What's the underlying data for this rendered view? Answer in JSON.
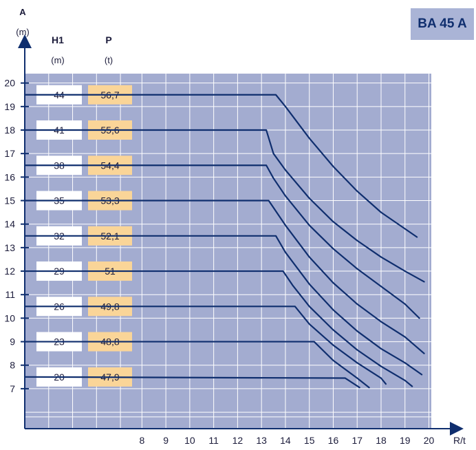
{
  "badge": "BA 45 A",
  "chart_data": {
    "type": "line",
    "ylabel": "A",
    "ylabel_unit": "(m)",
    "xlabel": "R/t",
    "col_h": "H1",
    "col_h_unit": "(m)",
    "col_p": "P",
    "col_p_unit": "(t)",
    "xlim": [
      3.1,
      20.1
    ],
    "ylim": [
      5.3,
      20.4
    ],
    "x_ticks": [
      8,
      9,
      10,
      11,
      12,
      13,
      14,
      15,
      16,
      17,
      18,
      19,
      20
    ],
    "y_ticks": [
      7,
      8,
      9,
      10,
      11,
      12,
      13,
      14,
      15,
      16,
      17,
      18,
      19,
      20
    ],
    "grid": true,
    "colors": {
      "plot_bg": "#a3acd0",
      "grid": "#ffffff",
      "line": "#0f2e6e",
      "h_box": "#ffffff",
      "p_box": "#fad598"
    },
    "series": [
      {
        "h": "44",
        "p": "56,7",
        "points": [
          [
            3.1,
            19.5
          ],
          [
            13.6,
            19.5
          ],
          [
            14.0,
            19.0
          ],
          [
            15.0,
            17.65
          ],
          [
            16.0,
            16.45
          ],
          [
            17.0,
            15.4
          ],
          [
            18.0,
            14.5
          ],
          [
            19.5,
            13.45
          ]
        ]
      },
      {
        "h": "41",
        "p": "55,6",
        "points": [
          [
            3.1,
            18.0
          ],
          [
            13.2,
            18.0
          ],
          [
            13.5,
            17.0
          ],
          [
            14.0,
            16.3
          ],
          [
            15.0,
            15.1
          ],
          [
            16.0,
            14.1
          ],
          [
            17.0,
            13.3
          ],
          [
            18.0,
            12.6
          ],
          [
            19.0,
            12.0
          ],
          [
            19.8,
            11.55
          ]
        ]
      },
      {
        "h": "38",
        "p": "54,4",
        "points": [
          [
            3.1,
            16.5
          ],
          [
            13.2,
            16.5
          ],
          [
            13.5,
            15.95
          ],
          [
            14.0,
            15.2
          ],
          [
            15.0,
            13.95
          ],
          [
            16.0,
            12.95
          ],
          [
            17.0,
            12.1
          ],
          [
            18.0,
            11.35
          ],
          [
            19.0,
            10.6
          ],
          [
            19.6,
            10.0
          ]
        ]
      },
      {
        "h": "35",
        "p": "53,3",
        "points": [
          [
            3.1,
            15.0
          ],
          [
            13.3,
            15.0
          ],
          [
            13.6,
            14.55
          ],
          [
            14.0,
            13.95
          ],
          [
            15.0,
            12.6
          ],
          [
            16.0,
            11.5
          ],
          [
            17.0,
            10.6
          ],
          [
            18.0,
            9.85
          ],
          [
            19.0,
            9.2
          ],
          [
            19.8,
            8.5
          ]
        ]
      },
      {
        "h": "32",
        "p": "52,1",
        "points": [
          [
            3.1,
            13.5
          ],
          [
            13.6,
            13.5
          ],
          [
            14.0,
            12.8
          ],
          [
            15.0,
            11.45
          ],
          [
            16.0,
            10.35
          ],
          [
            17.0,
            9.45
          ],
          [
            18.0,
            8.7
          ],
          [
            19.0,
            8.1
          ],
          [
            19.7,
            7.6
          ]
        ]
      },
      {
        "h": "29",
        "p": "51",
        "points": [
          [
            3.1,
            12.0
          ],
          [
            13.9,
            12.0
          ],
          [
            14.3,
            11.4
          ],
          [
            15.0,
            10.5
          ],
          [
            16.0,
            9.5
          ],
          [
            17.0,
            8.65
          ],
          [
            18.0,
            7.95
          ],
          [
            19.0,
            7.35
          ],
          [
            19.3,
            7.1
          ]
        ]
      },
      {
        "h": "26",
        "p": "49,8",
        "points": [
          [
            3.1,
            10.5
          ],
          [
            14.4,
            10.5
          ],
          [
            15.0,
            9.75
          ],
          [
            16.0,
            8.85
          ],
          [
            17.0,
            8.1
          ],
          [
            18.0,
            7.45
          ],
          [
            18.2,
            7.2
          ]
        ]
      },
      {
        "h": "23",
        "p": "48,8",
        "points": [
          [
            3.1,
            9.0
          ],
          [
            15.2,
            9.0
          ],
          [
            16.0,
            8.2
          ],
          [
            17.0,
            7.45
          ],
          [
            17.5,
            7.05
          ]
        ]
      },
      {
        "h": "20",
        "p": "47,9",
        "points": [
          [
            3.1,
            7.5
          ],
          [
            16.5,
            7.45
          ],
          [
            17.1,
            7.05
          ]
        ]
      }
    ]
  }
}
